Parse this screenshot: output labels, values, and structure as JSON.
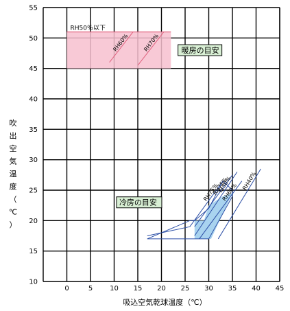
{
  "chart_data": {
    "type": "area",
    "title": "",
    "xlabel": "吸込空気乾球温度（℃）",
    "ylabel": "吹出空気温度（℃）",
    "xlim": [
      -5,
      45
    ],
    "ylim": [
      10,
      55
    ],
    "xticks": [
      0,
      5,
      10,
      15,
      20,
      25,
      30,
      35,
      40,
      45
    ],
    "yticks": [
      10,
      15,
      20,
      25,
      30,
      35,
      40,
      45,
      50,
      55
    ],
    "grid": true,
    "colors": {
      "heating": "#f7c0cf",
      "heating_edge": "#e0607e",
      "cooling": "#a9d3ef",
      "cooling_edge": "#2c4fa6",
      "label_box": "#d8efd4"
    },
    "heating_region": {
      "label": "暖房の目安",
      "x_range": [
        0,
        22
      ],
      "y_range": [
        45,
        51
      ],
      "note": "RH50％以下",
      "lines": [
        {
          "name": "RH60%",
          "points": [
            [
              9,
              46
            ],
            [
              14,
              51
            ]
          ]
        },
        {
          "name": "RH70%",
          "points": [
            [
              15,
              45.5
            ],
            [
              20.5,
              51
            ]
          ]
        }
      ]
    },
    "cooling_region": {
      "label": "冷房の目安",
      "shade_polygon": [
        [
          27,
          20
        ],
        [
          29,
          20
        ],
        [
          30,
          22.5
        ],
        [
          33,
          24
        ],
        [
          35,
          24.5
        ],
        [
          30.5,
          17
        ],
        [
          27,
          17
        ]
      ],
      "envelope_polygon": [
        [
          17,
          17
        ],
        [
          30,
          17
        ],
        [
          35,
          24
        ],
        [
          35,
          25
        ],
        [
          33,
          26.5
        ],
        [
          30,
          22
        ],
        [
          27,
          20
        ],
        [
          26,
          20
        ]
      ],
      "lines": [
        {
          "name": "RH75%",
          "points": [
            [
              17,
              17.5
            ],
            [
              26,
              19
            ],
            [
              33,
              26.5
            ]
          ]
        },
        {
          "name": "RH75%",
          "points": [
            [
              27,
              19
            ],
            [
              35,
              27.5
            ]
          ]
        },
        {
          "name": "Et50%",
          "points": [
            [
              27,
              17.5
            ],
            [
              36,
              28
            ]
          ]
        },
        {
          "name": "RH60%",
          "points": [
            [
              28,
              17
            ],
            [
              37,
              26.5
            ]
          ]
        },
        {
          "name": "RH40%",
          "points": [
            [
              32,
              17
            ],
            [
              41,
              28.5
            ]
          ]
        }
      ]
    }
  }
}
